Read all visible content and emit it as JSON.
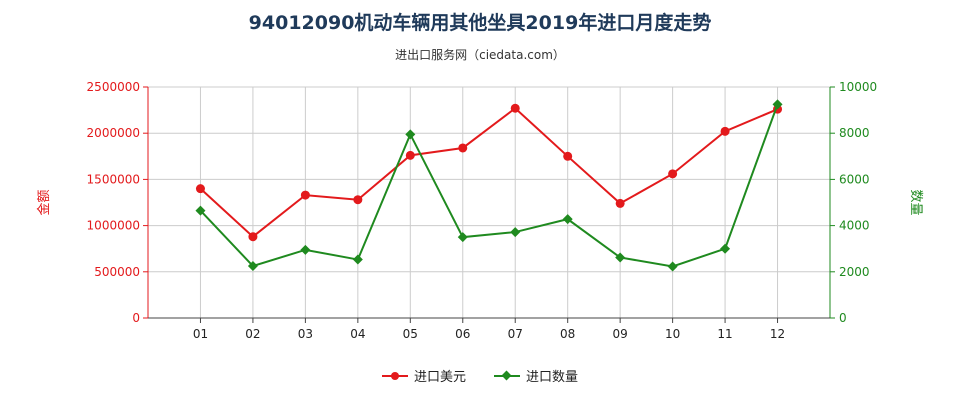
{
  "title": "94012090机动车辆用其他坐具2019年进口月度走势",
  "subtitle": "进出口服务网（ciedata.com）",
  "colors": {
    "left": "#e31a1c",
    "right": "#1f8a1f",
    "grid": "#cccccc",
    "axis": "#444444"
  },
  "chart_data": {
    "type": "line",
    "categories": [
      "01",
      "02",
      "03",
      "04",
      "05",
      "06",
      "07",
      "08",
      "09",
      "10",
      "11",
      "12"
    ],
    "y_left": {
      "label": "金额",
      "min": 0,
      "max": 2500000,
      "ticks": [
        0,
        500000,
        1000000,
        1500000,
        2000000,
        2500000
      ]
    },
    "y_right": {
      "label": "数量",
      "min": 0,
      "max": 10000,
      "ticks": [
        0,
        2000,
        4000,
        6000,
        8000,
        10000
      ]
    },
    "series": [
      {
        "name": "进口美元",
        "axis": "left",
        "values": [
          1400000,
          880000,
          1330000,
          1280000,
          1760000,
          1840000,
          2270000,
          1750000,
          1240000,
          1560000,
          2020000,
          2260000
        ]
      },
      {
        "name": "进口数量",
        "axis": "right",
        "values": [
          4650,
          2250,
          2950,
          2530,
          7950,
          3500,
          3720,
          4280,
          2620,
          2230,
          3000,
          9250
        ]
      }
    ],
    "grid": true,
    "legend": "bottom-center"
  }
}
